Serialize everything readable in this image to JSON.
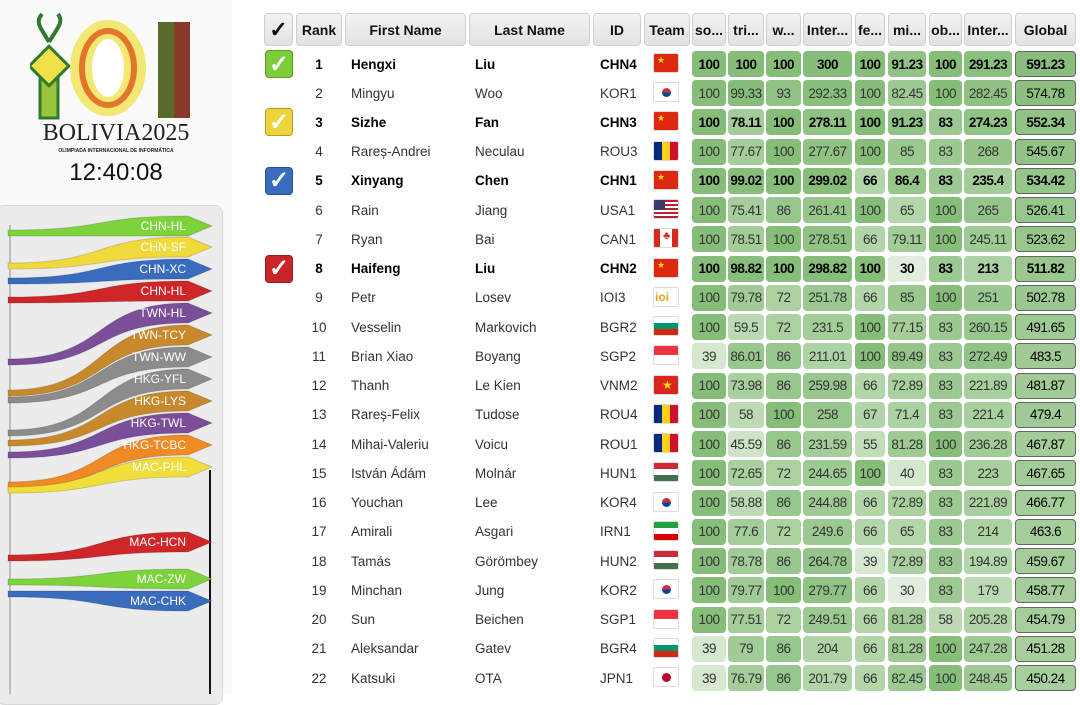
{
  "logo": {
    "text": "IOI",
    "subtitle": "BOLIVIA2025",
    "tagline": "OLIMPIADA INTERNACIONAL DE INFORMÁTICA"
  },
  "clock": "12:40:08",
  "race": {
    "teams": [
      {
        "label": "CHN-HL",
        "color": "#7dd33b"
      },
      {
        "label": "CHN-SF",
        "color": "#f0d93a"
      },
      {
        "label": "CHN-XC",
        "color": "#3a6cbd"
      },
      {
        "label": "CHN-HL",
        "color": "#cf262a"
      },
      {
        "label": "TWN-HL",
        "color": "#7b4e99"
      },
      {
        "label": "TWN-TCY",
        "color": "#c8892d"
      },
      {
        "label": "TWN-WW",
        "color": "#8c8c8c"
      },
      {
        "label": "HKG-YFL",
        "color": "#8c8c8c"
      },
      {
        "label": "HKG-LYS",
        "color": "#c8892d"
      },
      {
        "label": "HKG-TWL",
        "color": "#7b4e99"
      },
      {
        "label": "HKG-TCBC",
        "color": "#f08a24"
      },
      {
        "label": "MAC-PHL",
        "color": "#f0de3a"
      },
      {
        "label": "MAC-HCN",
        "color": "#cf262a"
      },
      {
        "label": "MAC-ZW",
        "color": "#7dd33b"
      },
      {
        "label": "MAC-CHK",
        "color": "#3a6cbd"
      }
    ]
  },
  "table": {
    "headers": [
      "✓",
      "Rank",
      "First Name",
      "Last Name",
      "ID",
      "Team",
      "so...",
      "tri...",
      "w...",
      "Inter...",
      "fe...",
      "mi...",
      "ob...",
      "Inter...",
      "Global"
    ],
    "rows": [
      {
        "check": "green",
        "rank": 1,
        "first": "Hengxi",
        "last": "Liu",
        "id": "CHN4",
        "flag": "CHN",
        "scores": [
          100,
          100,
          100,
          300,
          100,
          91.23,
          100,
          291.23,
          591.23
        ]
      },
      {
        "rank": 2,
        "first": "Mingyu",
        "last": "Woo",
        "id": "KOR1",
        "flag": "KOR",
        "scores": [
          100,
          99.33,
          93,
          292.33,
          100,
          82.45,
          100,
          282.45,
          574.78
        ]
      },
      {
        "check": "yellow",
        "rank": 3,
        "first": "Sizhe",
        "last": "Fan",
        "id": "CHN3",
        "flag": "CHN",
        "scores": [
          100,
          78.11,
          100,
          278.11,
          100,
          91.23,
          83,
          274.23,
          552.34
        ]
      },
      {
        "rank": 4,
        "first": "Rareș-Andrei",
        "last": "Neculau",
        "id": "ROU3",
        "flag": "ROU",
        "scores": [
          100,
          77.67,
          100,
          277.67,
          100,
          85,
          83,
          268,
          545.67
        ]
      },
      {
        "check": "blue",
        "rank": 5,
        "first": "Xinyang",
        "last": "Chen",
        "id": "CHN1",
        "flag": "CHN",
        "scores": [
          100,
          99.02,
          100,
          299.02,
          66,
          86.4,
          83,
          235.4,
          534.42
        ]
      },
      {
        "rank": 6,
        "first": "Rain",
        "last": "Jiang",
        "id": "USA1",
        "flag": "USA",
        "scores": [
          100,
          75.41,
          86,
          261.41,
          100,
          65,
          100,
          265,
          526.41
        ]
      },
      {
        "rank": 7,
        "first": "Ryan",
        "last": "Bai",
        "id": "CAN1",
        "flag": "CAN",
        "scores": [
          100,
          78.51,
          100,
          278.51,
          66,
          79.11,
          100,
          245.11,
          523.62
        ]
      },
      {
        "check": "red",
        "rank": 8,
        "first": "Haifeng",
        "last": "Liu",
        "id": "CHN2",
        "flag": "CHN",
        "scores": [
          100,
          98.82,
          100,
          298.82,
          100,
          30,
          83,
          213,
          511.82
        ]
      },
      {
        "rank": 9,
        "first": "Petr",
        "last": "Losev",
        "id": "IOI3",
        "flag": "IOI",
        "scores": [
          100,
          79.78,
          72,
          251.78,
          66,
          85,
          100,
          251,
          502.78
        ]
      },
      {
        "rank": 10,
        "first": "Vesselin",
        "last": "Markovich",
        "id": "BGR2",
        "flag": "BGR",
        "scores": [
          100,
          59.5,
          72,
          231.5,
          100,
          77.15,
          83,
          260.15,
          491.65
        ]
      },
      {
        "rank": 11,
        "first": "Brian Xiao",
        "last": "Boyang",
        "id": "SGP2",
        "flag": "SGP",
        "scores": [
          39,
          86.01,
          86,
          211.01,
          100,
          89.49,
          83,
          272.49,
          483.5
        ]
      },
      {
        "rank": 12,
        "first": "Thanh",
        "last": "Le Kien",
        "id": "VNM2",
        "flag": "VNM",
        "scores": [
          100,
          73.98,
          86,
          259.98,
          66,
          72.89,
          83,
          221.89,
          481.87
        ]
      },
      {
        "rank": 13,
        "first": "Rareș-Felix",
        "last": "Tudose",
        "id": "ROU4",
        "flag": "ROU",
        "scores": [
          100,
          58,
          100,
          258,
          67,
          71.4,
          83,
          221.4,
          479.4
        ]
      },
      {
        "rank": 14,
        "first": "Mihai-Valeriu",
        "last": "Voicu",
        "id": "ROU1",
        "flag": "ROU",
        "scores": [
          100,
          45.59,
          86,
          231.59,
          55,
          81.28,
          100,
          236.28,
          467.87
        ]
      },
      {
        "rank": 15,
        "first": "István Ádám",
        "last": "Molnár",
        "id": "HUN1",
        "flag": "HUN",
        "scores": [
          100,
          72.65,
          72,
          244.65,
          100,
          40,
          83,
          223,
          467.65
        ]
      },
      {
        "rank": 16,
        "first": "Youchan",
        "last": "Lee",
        "id": "KOR4",
        "flag": "KOR",
        "scores": [
          100,
          58.88,
          86,
          244.88,
          66,
          72.89,
          83,
          221.89,
          466.77
        ]
      },
      {
        "rank": 17,
        "first": "Amirali",
        "last": "Asgari",
        "id": "IRN1",
        "flag": "IRN",
        "scores": [
          100,
          77.6,
          72,
          249.6,
          66,
          65,
          83,
          214,
          463.6
        ]
      },
      {
        "rank": 18,
        "first": "Tamás",
        "last": "Görömbey",
        "id": "HUN2",
        "flag": "HUN",
        "scores": [
          100,
          78.78,
          86,
          264.78,
          39,
          72.89,
          83,
          194.89,
          459.67
        ]
      },
      {
        "rank": 19,
        "first": "Minchan",
        "last": "Jung",
        "id": "KOR2",
        "flag": "KOR",
        "scores": [
          100,
          79.77,
          100,
          279.77,
          66,
          30,
          83,
          179,
          458.77
        ]
      },
      {
        "rank": 20,
        "first": "Sun",
        "last": "Beichen",
        "id": "SGP1",
        "flag": "SGP",
        "scores": [
          100,
          77.51,
          72,
          249.51,
          66,
          81.28,
          58,
          205.28,
          454.79
        ]
      },
      {
        "rank": 21,
        "first": "Aleksandar",
        "last": "Gatev",
        "id": "BGR4",
        "flag": "BGR",
        "scores": [
          39,
          79,
          86,
          204,
          66,
          81.28,
          100,
          247.28,
          451.28
        ]
      },
      {
        "rank": 22,
        "first": "Katsuki",
        "last": "OTA",
        "id": "JPN1",
        "flag": "JPN",
        "scores": [
          39,
          76.79,
          86,
          201.79,
          66,
          82.45,
          100,
          248.45,
          450.24
        ]
      }
    ]
  },
  "colors": {
    "green": "#7ccd3a",
    "yellow": "#ecd43a",
    "blue": "#3a6cbd",
    "red": "#c8252a",
    "cell_low": "#e2eedd",
    "cell_high": "#86bd79"
  }
}
